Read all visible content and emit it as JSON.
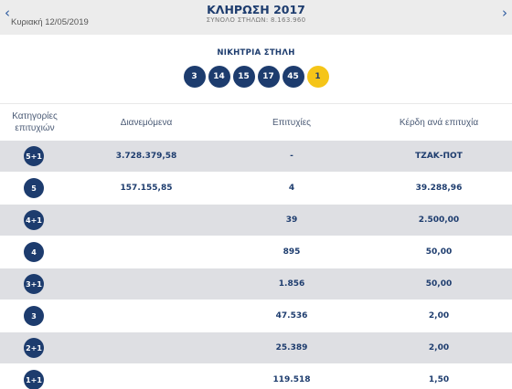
{
  "header": {
    "prev_arrow": "‹",
    "next_arrow": "›",
    "date": "Κυριακή 12/05/2019",
    "title": "ΚΛΗΡΩΣΗ 2017",
    "total_columns": "ΣΥΝΟΛΟ ΣΤΗΛΩΝ: 8.163.960"
  },
  "winning": {
    "label": "ΝΙΚΗΤΡΙΑ ΣΤΗΛΗ",
    "numbers": [
      "3",
      "14",
      "15",
      "17",
      "45"
    ],
    "joker": "1"
  },
  "table": {
    "headers": {
      "category": "Κατηγορίες επιτυχιών",
      "distributed": "Διανεμόμενα",
      "winners": "Επιτυχίες",
      "prize": "Κέρδη ανά επιτυχία"
    },
    "rows": [
      {
        "category": "5+1",
        "distributed": "3.728.379,58",
        "winners": "-",
        "prize": "ΤΖΑΚ-ΠΟΤ"
      },
      {
        "category": "5",
        "distributed": "157.155,85",
        "winners": "4",
        "prize": "39.288,96"
      },
      {
        "category": "4+1",
        "distributed": "",
        "winners": "39",
        "prize": "2.500,00"
      },
      {
        "category": "4",
        "distributed": "",
        "winners": "895",
        "prize": "50,00"
      },
      {
        "category": "3+1",
        "distributed": "",
        "winners": "1.856",
        "prize": "50,00"
      },
      {
        "category": "3",
        "distributed": "",
        "winners": "47.536",
        "prize": "2,00"
      },
      {
        "category": "2+1",
        "distributed": "",
        "winners": "25.389",
        "prize": "2,00"
      },
      {
        "category": "1+1",
        "distributed": "",
        "winners": "119.518",
        "prize": "1,50"
      }
    ]
  },
  "colors": {
    "navy": "#1d3c6e",
    "joker_yellow": "#f5c518",
    "row_shade": "#dedfe3",
    "header_bg": "#ececec"
  }
}
